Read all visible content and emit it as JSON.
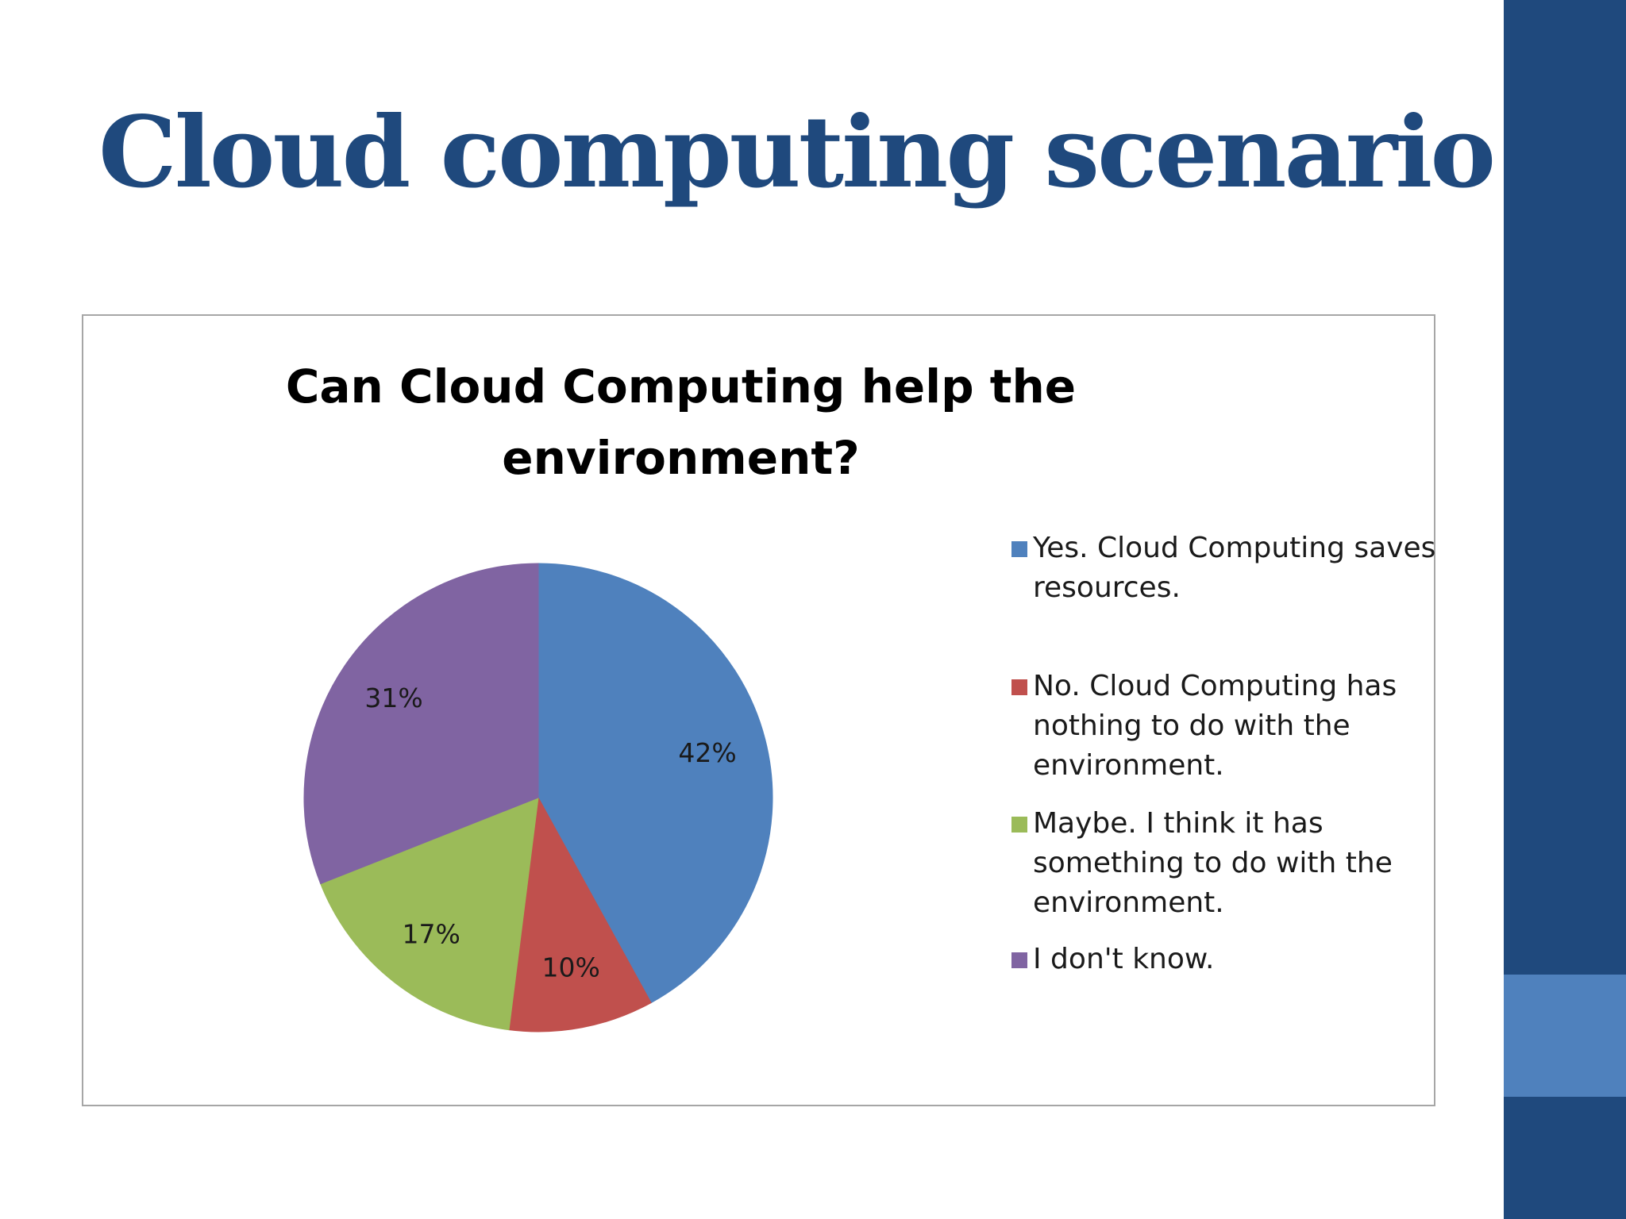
{
  "slide": {
    "title": "Cloud computing scenario"
  },
  "colors": {
    "title": "#1f497d",
    "sidebar": "#1f497d",
    "sidebar_accent": "#4f81bd",
    "yes": "#4f81bd",
    "no": "#c0504d",
    "maybe": "#9bbb59",
    "dont_know": "#8064a2"
  },
  "chart_data": {
    "type": "pie",
    "title_lines": [
      "Can Cloud Computing help the",
      "environment?"
    ],
    "legend_position": "right",
    "slices": [
      {
        "label_lines": [
          "Yes. Cloud Computing saves",
          "resources."
        ],
        "value": 42,
        "data_label": "42%",
        "color": "#4f81bd"
      },
      {
        "label_lines": [
          "No. Cloud Computing has",
          "nothing to do with the",
          "environment."
        ],
        "value": 10,
        "data_label": "10%",
        "color": "#c0504d"
      },
      {
        "label_lines": [
          "Maybe. I think it has",
          "something to do with the",
          "environment."
        ],
        "value": 17,
        "data_label": "17%",
        "color": "#9bbb59"
      },
      {
        "label_lines": [
          "I don't know."
        ],
        "value": 31,
        "data_label": "31%",
        "color": "#8064a2"
      }
    ]
  }
}
